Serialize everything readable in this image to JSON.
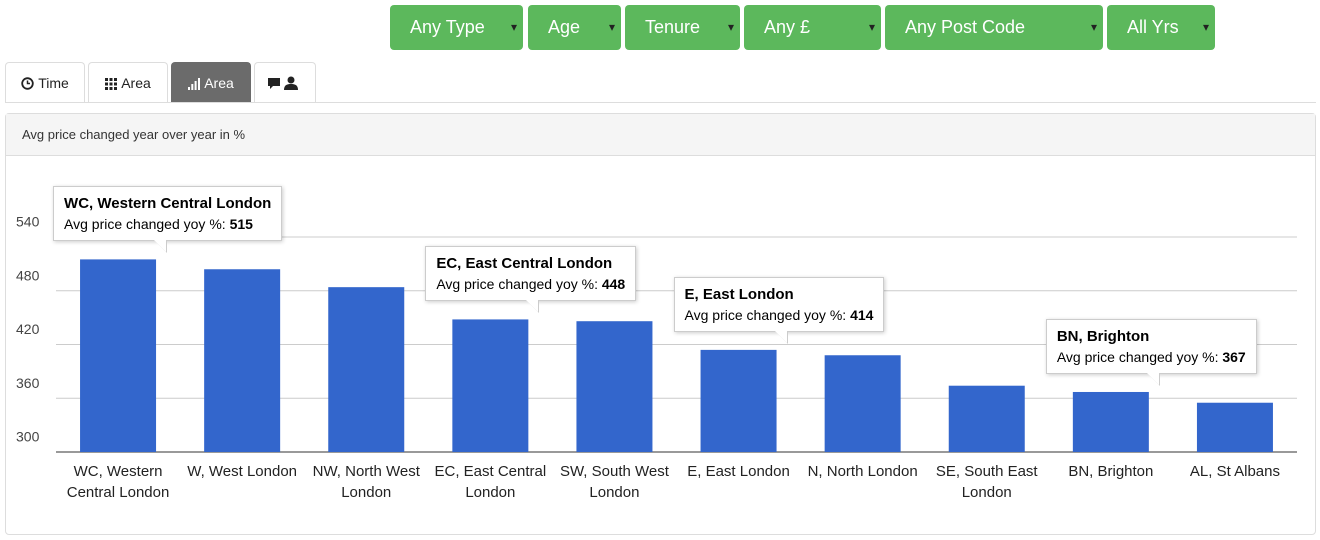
{
  "filters": [
    "Any Type",
    "Age",
    "Tenure",
    "Any £",
    "Any Post Code",
    "All Yrs"
  ],
  "tabs": [
    "Time",
    "Area",
    "Area"
  ],
  "panel_title": "Avg price changed year over year in %",
  "chart_data": {
    "type": "bar",
    "categories": [
      "WC, Western Central London",
      "W, West London",
      "NW, North West London",
      "EC, East Central London",
      "SW, South West London",
      "E, East London",
      "N, North London",
      "SE, South East London",
      "BN, Brighton",
      "AL, St Albans"
    ],
    "values": [
      515,
      504,
      484,
      448,
      446,
      414,
      408,
      374,
      367,
      355
    ],
    "color": "#3366cc",
    "ylim": [
      300,
      540
    ],
    "yticks": [
      300,
      360,
      420,
      480,
      540
    ],
    "grid": true,
    "tooltips": [
      {
        "title": "WC, Western Central London",
        "label": "Avg price changed yoy %:",
        "value": 515
      },
      {
        "title": "EC, East Central London",
        "label": "Avg price changed yoy %:",
        "value": 448
      },
      {
        "title": "E, East London",
        "label": "Avg price changed yoy %:",
        "value": 414
      },
      {
        "title": "BN, Brighton",
        "label": "Avg price changed yoy %:",
        "value": 367
      }
    ]
  }
}
